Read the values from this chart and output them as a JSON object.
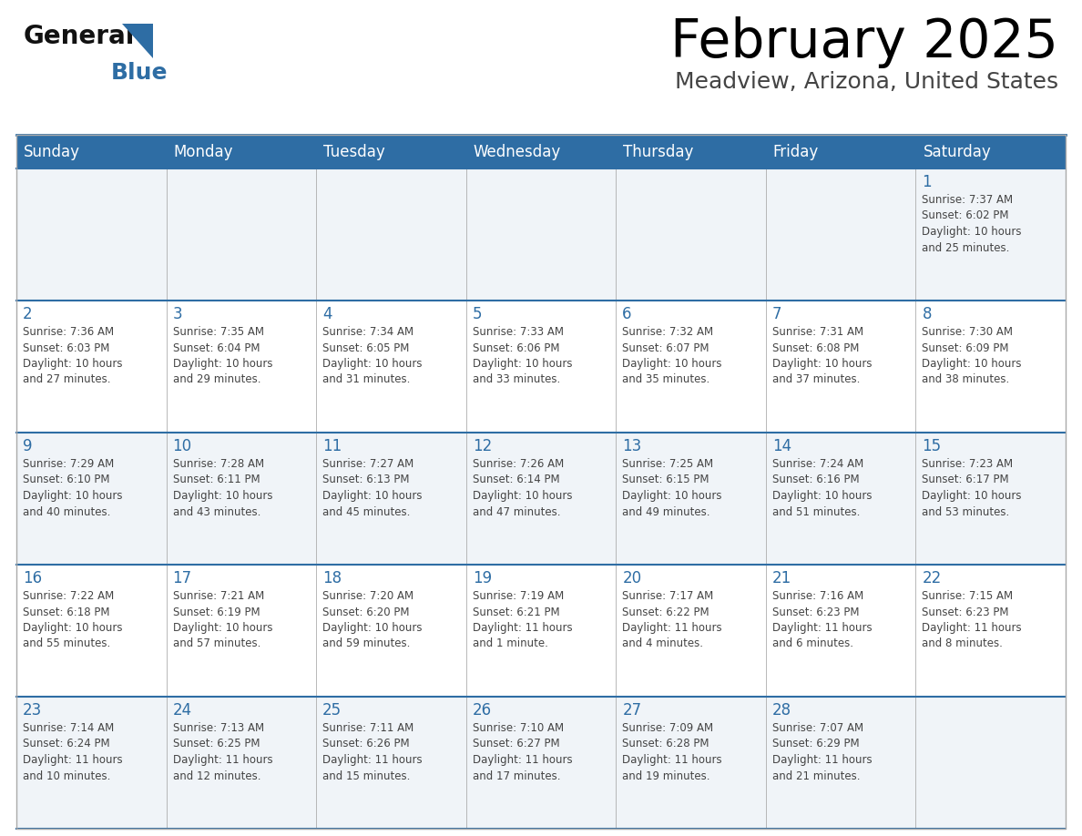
{
  "title": "February 2025",
  "subtitle": "Meadview, Arizona, United States",
  "days_of_week": [
    "Sunday",
    "Monday",
    "Tuesday",
    "Wednesday",
    "Thursday",
    "Friday",
    "Saturday"
  ],
  "header_bg": "#2E6DA4",
  "header_text": "#FFFFFF",
  "cell_bg_odd": "#F0F4F8",
  "cell_bg_even": "#FFFFFF",
  "cell_border": "#AAAAAA",
  "row_border_color": "#2E6DA4",
  "day_number_color": "#2E6DA4",
  "info_color": "#444444",
  "title_color": "#000000",
  "subtitle_color": "#444444",
  "logo_general_color": "#111111",
  "logo_blue_color": "#2E6DA4",
  "calendar": [
    [
      null,
      null,
      null,
      null,
      null,
      null,
      1
    ],
    [
      2,
      3,
      4,
      5,
      6,
      7,
      8
    ],
    [
      9,
      10,
      11,
      12,
      13,
      14,
      15
    ],
    [
      16,
      17,
      18,
      19,
      20,
      21,
      22
    ],
    [
      23,
      24,
      25,
      26,
      27,
      28,
      null
    ]
  ],
  "sunrise_data": {
    "1": "7:37 AM",
    "2": "7:36 AM",
    "3": "7:35 AM",
    "4": "7:34 AM",
    "5": "7:33 AM",
    "6": "7:32 AM",
    "7": "7:31 AM",
    "8": "7:30 AM",
    "9": "7:29 AM",
    "10": "7:28 AM",
    "11": "7:27 AM",
    "12": "7:26 AM",
    "13": "7:25 AM",
    "14": "7:24 AM",
    "15": "7:23 AM",
    "16": "7:22 AM",
    "17": "7:21 AM",
    "18": "7:20 AM",
    "19": "7:19 AM",
    "20": "7:17 AM",
    "21": "7:16 AM",
    "22": "7:15 AM",
    "23": "7:14 AM",
    "24": "7:13 AM",
    "25": "7:11 AM",
    "26": "7:10 AM",
    "27": "7:09 AM",
    "28": "7:07 AM"
  },
  "sunset_data": {
    "1": "6:02 PM",
    "2": "6:03 PM",
    "3": "6:04 PM",
    "4": "6:05 PM",
    "5": "6:06 PM",
    "6": "6:07 PM",
    "7": "6:08 PM",
    "8": "6:09 PM",
    "9": "6:10 PM",
    "10": "6:11 PM",
    "11": "6:13 PM",
    "12": "6:14 PM",
    "13": "6:15 PM",
    "14": "6:16 PM",
    "15": "6:17 PM",
    "16": "6:18 PM",
    "17": "6:19 PM",
    "18": "6:20 PM",
    "19": "6:21 PM",
    "20": "6:22 PM",
    "21": "6:23 PM",
    "22": "6:23 PM",
    "23": "6:24 PM",
    "24": "6:25 PM",
    "25": "6:26 PM",
    "26": "6:27 PM",
    "27": "6:28 PM",
    "28": "6:29 PM"
  },
  "daylight_data": {
    "1": "10 hours and 25 minutes.",
    "2": "10 hours and 27 minutes.",
    "3": "10 hours and 29 minutes.",
    "4": "10 hours and 31 minutes.",
    "5": "10 hours and 33 minutes.",
    "6": "10 hours and 35 minutes.",
    "7": "10 hours and 37 minutes.",
    "8": "10 hours and 38 minutes.",
    "9": "10 hours and 40 minutes.",
    "10": "10 hours and 43 minutes.",
    "11": "10 hours and 45 minutes.",
    "12": "10 hours and 47 minutes.",
    "13": "10 hours and 49 minutes.",
    "14": "10 hours and 51 minutes.",
    "15": "10 hours and 53 minutes.",
    "16": "10 hours and 55 minutes.",
    "17": "10 hours and 57 minutes.",
    "18": "10 hours and 59 minutes.",
    "19": "11 hours and 1 minute.",
    "20": "11 hours and 4 minutes.",
    "21": "11 hours and 6 minutes.",
    "22": "11 hours and 8 minutes.",
    "23": "11 hours and 10 minutes.",
    "24": "11 hours and 12 minutes.",
    "25": "11 hours and 15 minutes.",
    "26": "11 hours and 17 minutes.",
    "27": "11 hours and 19 minutes.",
    "28": "11 hours and 21 minutes."
  }
}
